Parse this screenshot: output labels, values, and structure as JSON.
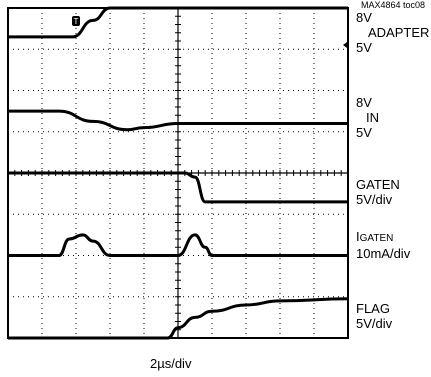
{
  "figure_id": "MAX4864 toc08",
  "chart_data": {
    "type": "line",
    "title": "",
    "xlabel": "2µs/div",
    "ylabel": "",
    "x_divisions": 10,
    "y_divisions": 8,
    "grid": true,
    "trigger_marker": "T",
    "channel_labels": [
      {
        "id": "adapter",
        "top": "8V",
        "name": "ADAPTER",
        "bottom": "5V"
      },
      {
        "id": "in",
        "top": "8V",
        "name": "IN",
        "bottom": "5V"
      },
      {
        "id": "gaten",
        "name": "GATEN",
        "scale": "5V/div"
      },
      {
        "id": "igaten",
        "name_main": "I",
        "name_sub": "GATEN",
        "scale": "10mA/div"
      },
      {
        "id": "flag",
        "name": "FLAG",
        "scale": "5V/div"
      }
    ],
    "series": [
      {
        "id": "adapter",
        "x": [
          0,
          1.9,
          2.5,
          3.0,
          4.0,
          10
        ],
        "y": [
          7.3,
          7.3,
          7.7,
          8.0,
          8.0,
          8.0
        ]
      },
      {
        "id": "in",
        "x": [
          0,
          1.5,
          2.5,
          3.5,
          4.0,
          5.0,
          10
        ],
        "y": [
          5.5,
          5.5,
          5.25,
          5.05,
          5.1,
          5.2,
          5.2
        ]
      },
      {
        "id": "gaten",
        "x": [
          0,
          5.2,
          5.5,
          5.8,
          10
        ],
        "y": [
          4.0,
          4.0,
          3.9,
          3.3,
          3.3
        ]
      },
      {
        "id": "igaten",
        "x": [
          0,
          1.5,
          1.8,
          2.2,
          2.5,
          3.0,
          3.5,
          4.2,
          5.0,
          5.5,
          5.8,
          6.0,
          10
        ],
        "y": [
          2.0,
          2.0,
          2.4,
          2.5,
          2.35,
          2.0,
          2.0,
          2.0,
          2.0,
          2.5,
          2.2,
          2.0,
          2.0
        ]
      },
      {
        "id": "flag",
        "x": [
          0,
          4.7,
          5.0,
          5.5,
          6.0,
          7.0,
          8.0,
          10
        ],
        "y": [
          0.0,
          0.0,
          0.25,
          0.5,
          0.65,
          0.8,
          0.9,
          0.95
        ]
      }
    ]
  }
}
